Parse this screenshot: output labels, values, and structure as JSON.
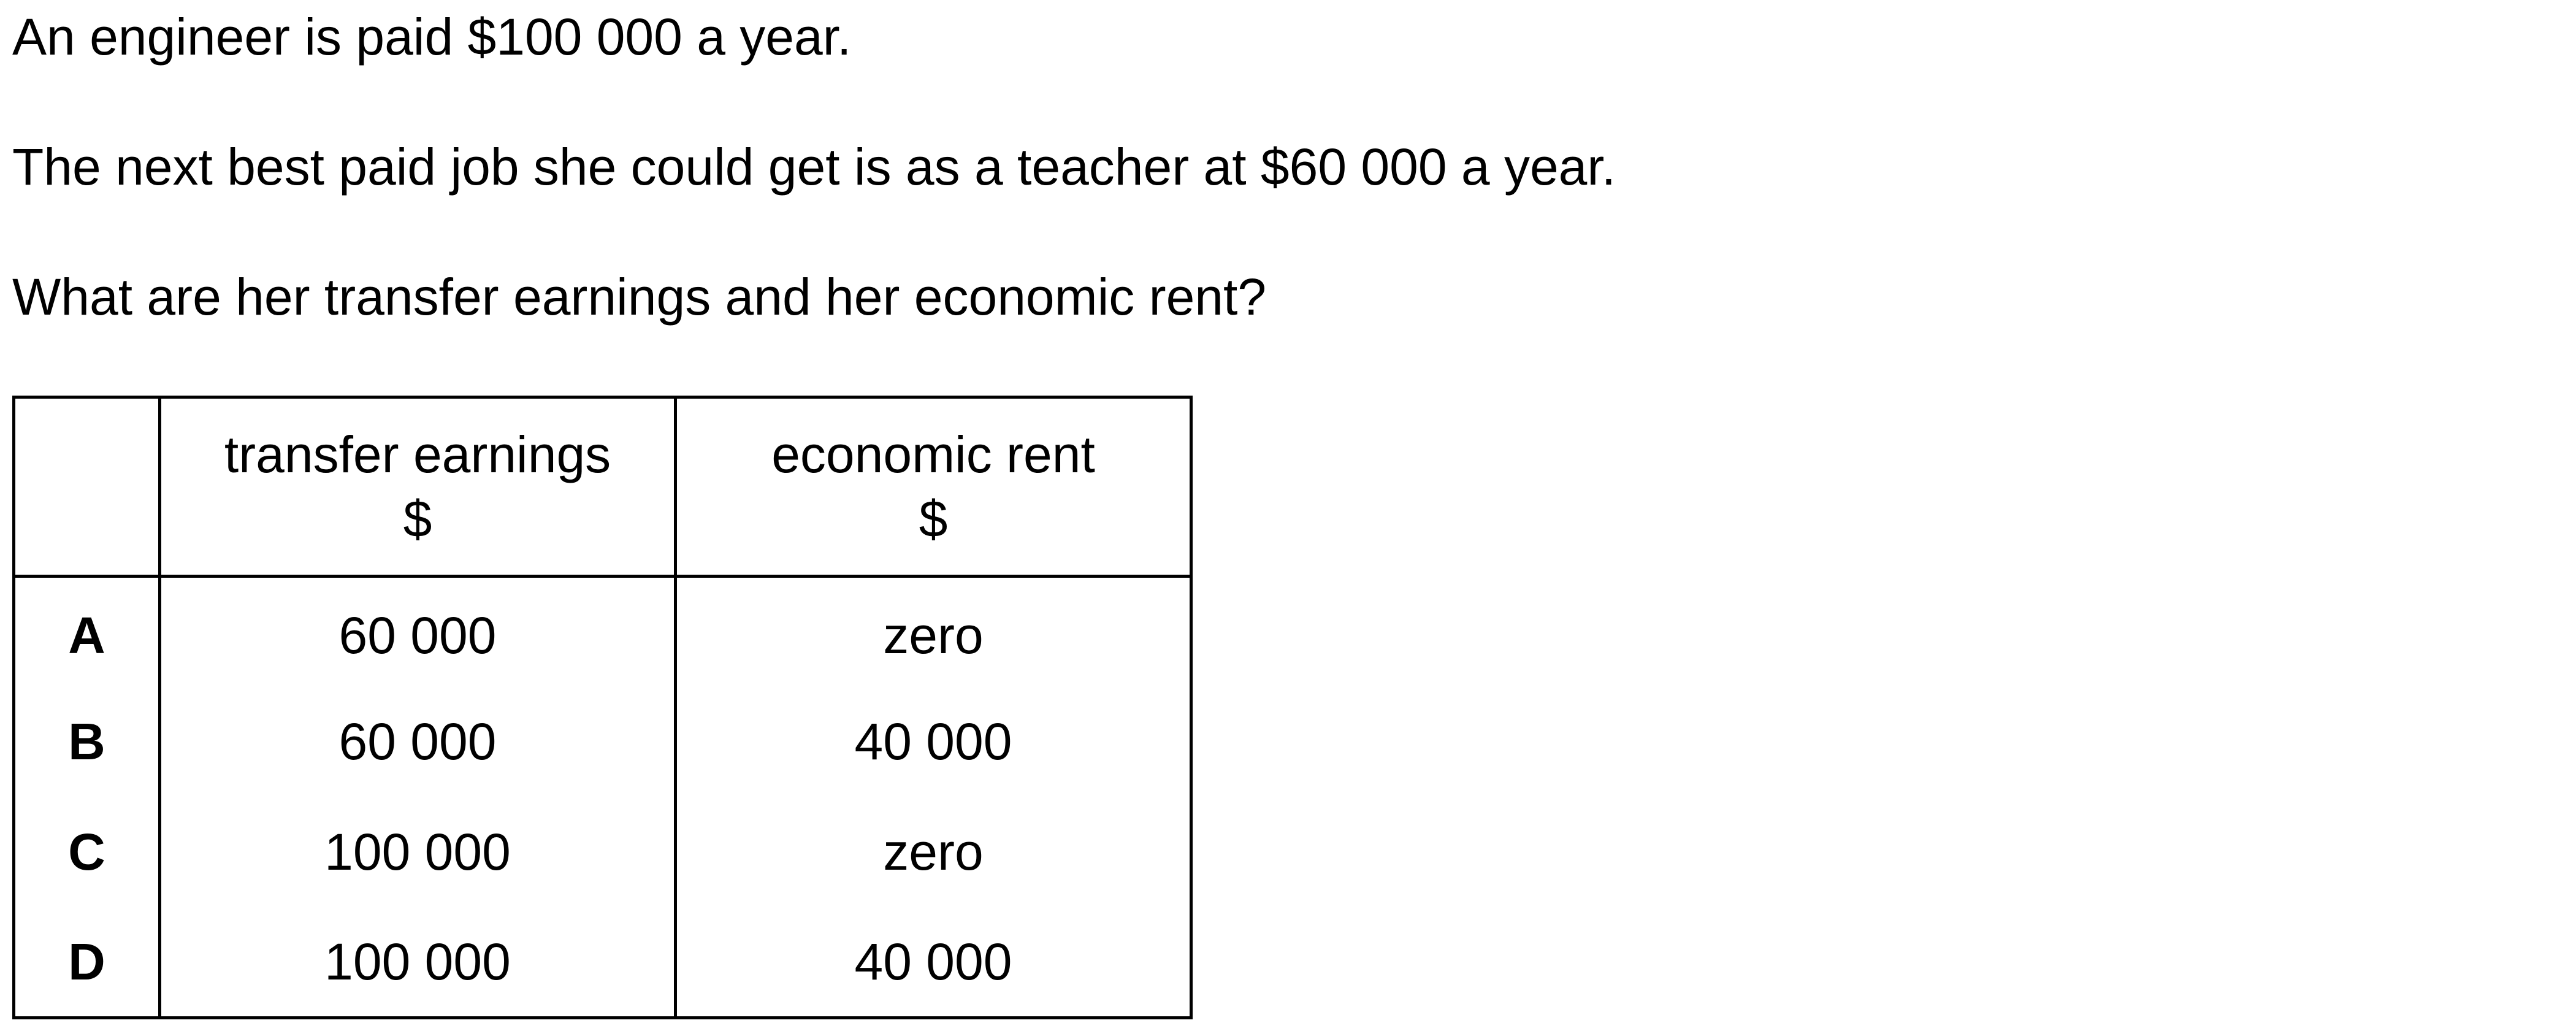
{
  "question": {
    "line1": "An engineer is paid $100 000 a year.",
    "line2": "The next best paid job she could get is as a teacher at $60 000 a year.",
    "line3": "What are her transfer earnings and her economic rent?"
  },
  "table": {
    "headers": [
      {
        "name": "transfer earnings",
        "unit": "$"
      },
      {
        "name": "economic rent",
        "unit": "$"
      }
    ],
    "rows": [
      {
        "letter": "A",
        "transfer": "60 000",
        "rent": "zero"
      },
      {
        "letter": "B",
        "transfer": "60 000",
        "rent": "40 000"
      },
      {
        "letter": "C",
        "transfer": "100 000",
        "rent": "zero"
      },
      {
        "letter": "D",
        "transfer": "100 000",
        "rent": "40 000"
      }
    ]
  }
}
